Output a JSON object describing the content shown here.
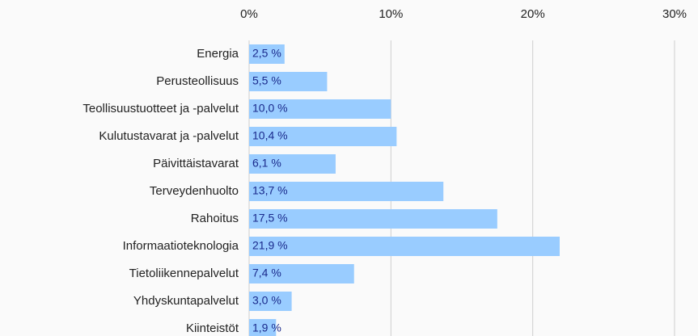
{
  "chart_data": {
    "type": "bar",
    "orientation": "horizontal",
    "categories": [
      "Energia",
      "Perusteollisuus",
      "Teollisuustuotteet ja -palvelut",
      "Kulutustavarat ja -palvelut",
      "Päivittäistavarat",
      "Terveydenhuolto",
      "Rahoitus",
      "Informaatioteknologia",
      "Tietoliikennepalvelut",
      "Yhdyskuntapalvelut",
      "Kiinteistöt"
    ],
    "values": [
      2.5,
      5.5,
      10.0,
      10.4,
      6.1,
      13.7,
      17.5,
      21.9,
      7.4,
      3.0,
      1.9
    ],
    "value_labels": [
      "2,5 %",
      "5,5 %",
      "10,0 %",
      "10,4 %",
      "6,1 %",
      "13,7 %",
      "17,5 %",
      "21,9 %",
      "7,4 %",
      "3,0 %",
      "1,9 %"
    ],
    "color": "#99ccff",
    "xlim": [
      0,
      30
    ],
    "xticks": [
      {
        "value": 0,
        "label": "0%"
      },
      {
        "value": 10,
        "label": "10%"
      },
      {
        "value": 20,
        "label": "20%"
      },
      {
        "value": 30,
        "label": "30%"
      }
    ],
    "grid": true
  }
}
